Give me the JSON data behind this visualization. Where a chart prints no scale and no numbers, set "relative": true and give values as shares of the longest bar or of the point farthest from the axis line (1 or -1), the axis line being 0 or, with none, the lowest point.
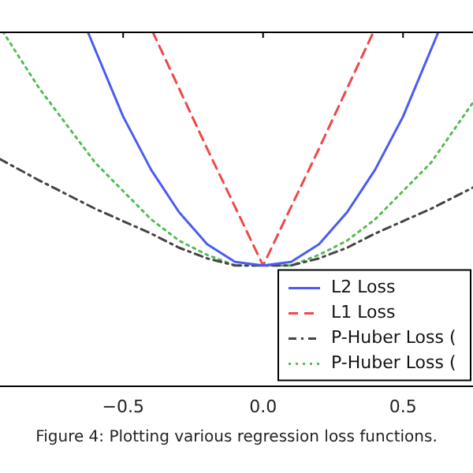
{
  "chart_data": {
    "type": "line",
    "relative": true,
    "legend": "bottom right",
    "marker": "none",
    "grid": false,
    "xlim": [
      -0.94,
      0.75
    ],
    "xticks": [
      {
        "value": -0.5,
        "label": "−0.5"
      },
      {
        "value": 0,
        "label": "0.0"
      },
      {
        "value": 0.5,
        "label": "0.5"
      }
    ],
    "annotations": [
      "Figure 4: Plotting various regression loss functions."
    ],
    "series": [
      {
        "name": "L2 Loss",
        "color": "#4a5cf2",
        "line_style": "solid",
        "x": [
          -0.627,
          -0.5,
          -0.4,
          -0.3,
          -0.2,
          -0.1,
          0,
          0.1,
          0.2,
          0.3,
          0.4,
          0.5,
          0.627
        ],
        "values": [
          1.0,
          0.76,
          0.61,
          0.49,
          0.4,
          0.35,
          0.34,
          0.35,
          0.4,
          0.49,
          0.61,
          0.76,
          1.0
        ]
      },
      {
        "name": "L1 Loss",
        "color": "#f04848",
        "line_style": "dashed",
        "x": [
          -0.395,
          -0.2,
          0,
          0.2,
          0.395
        ],
        "values": [
          1.0,
          0.67,
          0.34,
          0.67,
          1.0
        ]
      },
      {
        "name": "P-Huber Loss (",
        "color": "#444444",
        "line_style": "dashdot",
        "x": [
          -0.94,
          -0.8,
          -0.6,
          -0.4,
          -0.3,
          -0.2,
          -0.1,
          0,
          0.1,
          0.2,
          0.3,
          0.4,
          0.6,
          0.75
        ],
        "values": [
          0.64,
          0.58,
          0.5,
          0.43,
          0.39,
          0.36,
          0.34,
          0.34,
          0.34,
          0.36,
          0.39,
          0.43,
          0.5,
          0.56
        ]
      },
      {
        "name": "P-Huber Loss (",
        "color": "#55bb55",
        "line_style": "dotted",
        "x": [
          -0.93,
          -0.8,
          -0.6,
          -0.4,
          -0.3,
          -0.2,
          -0.1,
          0,
          0.1,
          0.2,
          0.3,
          0.4,
          0.6,
          0.75
        ],
        "values": [
          1.0,
          0.84,
          0.63,
          0.47,
          0.41,
          0.37,
          0.34,
          0.34,
          0.34,
          0.37,
          0.41,
          0.47,
          0.63,
          0.8
        ]
      }
    ]
  }
}
